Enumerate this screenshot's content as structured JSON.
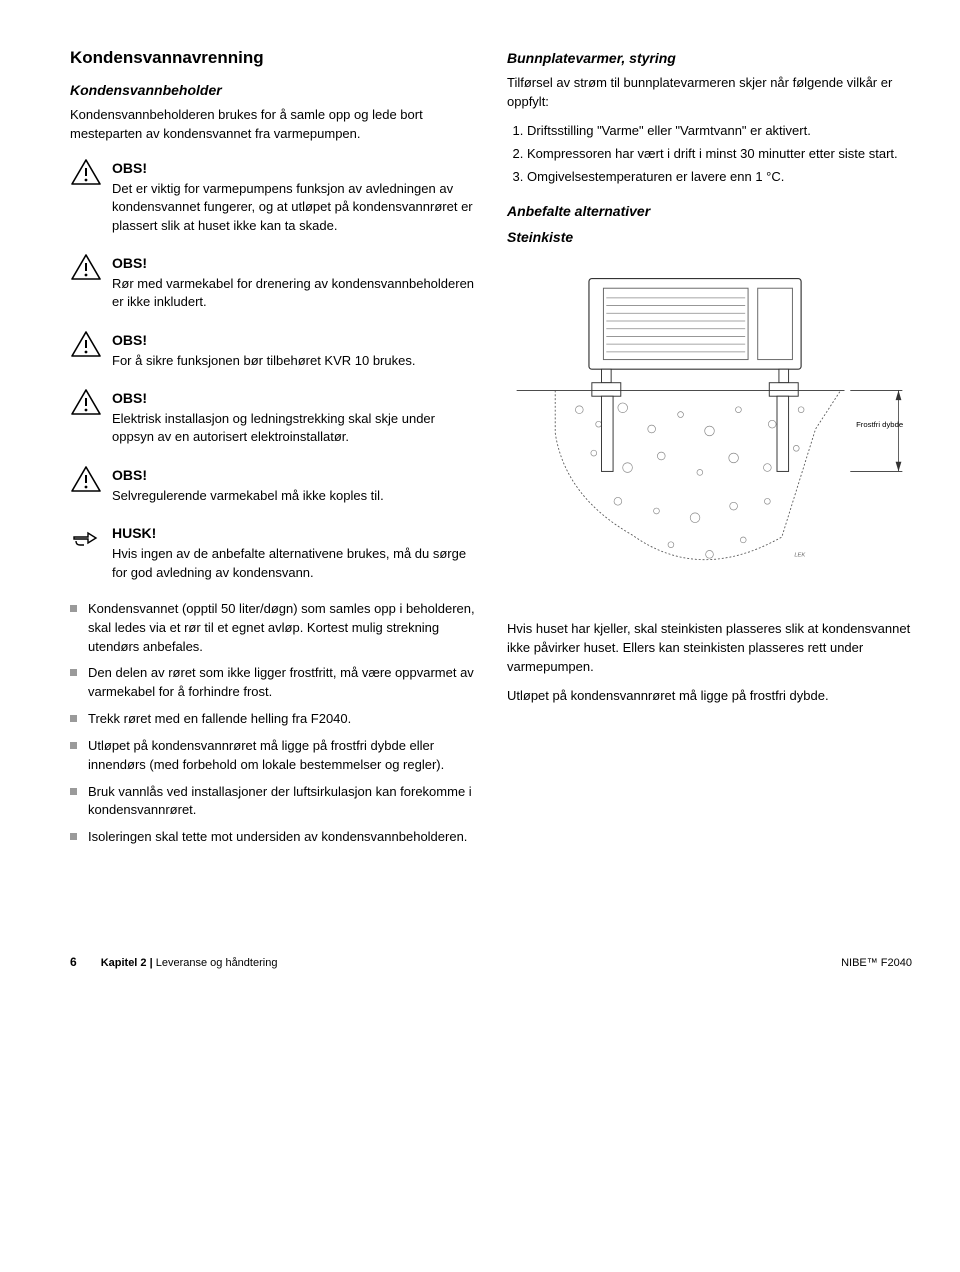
{
  "leftCol": {
    "h2": "Kondensvannavrenning",
    "subHead": "Kondensvannbeholder",
    "intro": "Kondensvannbeholderen brukes for å samle opp og lede bort mesteparten av kondensvannet fra varmepumpen.",
    "callouts": [
      {
        "type": "warn",
        "title": "OBS!",
        "text": "Det er viktig for varmepumpens funksjon av avledningen av kondensvannet fungerer, og at utløpet på kondensvannrøret er plassert slik at huset ikke kan ta skade."
      },
      {
        "type": "warn",
        "title": "OBS!",
        "text": "Rør med varmekabel for drenering av kondensvannbeholderen er ikke inkludert."
      },
      {
        "type": "warn",
        "title": "OBS!",
        "text": "For å sikre funksjonen bør tilbehøret KVR 10 brukes."
      },
      {
        "type": "warn",
        "title": "OBS!",
        "text": "Elektrisk installasjon og ledningstrekking skal skje under oppsyn av en autorisert elektroinstallatør."
      },
      {
        "type": "warn",
        "title": "OBS!",
        "text": "Selvregulerende varmekabel må ikke koples til."
      },
      {
        "type": "point",
        "title": "HUSK!",
        "text": "Hvis ingen av de anbefalte alternativene brukes, må du sørge for god avledning av kondensvann."
      }
    ],
    "bullets": [
      "Kondensvannet (opptil 50 liter/døgn) som samles opp i beholderen, skal ledes via et rør til et egnet avløp. Kortest mulig strekning utendørs anbefales.",
      "Den delen av røret som ikke ligger frostfritt, må være oppvarmet av varmekabel for å forhindre frost.",
      "Trekk røret med en fallende helling fra F2040.",
      "Utløpet på kondensvannrøret må ligge på frostfri dybde eller innendørs (med forbehold om lokale bestemmelser og regler).",
      "Bruk vannlås ved installasjoner der luftsirkulasjon kan forekomme i kondensvannrøret.",
      "Isoleringen skal tette mot undersiden av kondensvannbeholderen."
    ]
  },
  "rightCol": {
    "subHead": "Bunnplatevarmer, styring",
    "intro": "Tilførsel av strøm til bunnplatevarmeren skjer når følgende vilkår er oppfylt:",
    "conditions": [
      "Driftsstilling \"Varme\" eller \"Varmtvann\" er aktivert.",
      "Kompressoren har vært i drift i minst 30 minutter etter siste start.",
      "Omgivelsestemperaturen er lavere enn 1 °C."
    ],
    "sub2": "Anbefalte alternativer",
    "sub3": "Steinkiste",
    "diagramLabel": "Frostfri dybde",
    "diagramSmall": "LEK",
    "p1": "Hvis huset har kjeller, skal steinkisten plasseres slik at kondensvannet ikke påvirker huset. Ellers kan steinkisten plasseres rett under varmepumpen.",
    "p2": "Utløpet på kondensvannrøret må ligge på frostfri dybde."
  },
  "footer": {
    "pageNum": "6",
    "chapterLabel": "Kapitel 2 |",
    "chapterTitle": "Leveranse og håndtering",
    "right": "NIBE™ F2040"
  },
  "colors": {
    "text": "#000000",
    "bulletGrey": "#9a9a9a",
    "diagramLight": "#f3f3f3",
    "diagramStroke": "#4a4a4a"
  }
}
